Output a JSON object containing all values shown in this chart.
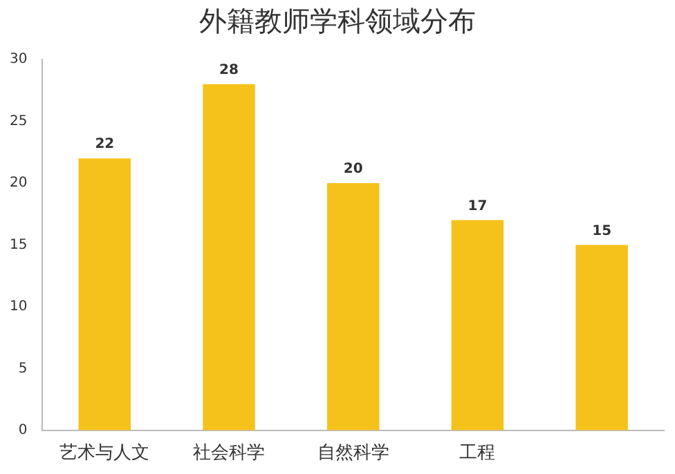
{
  "chart_data": {
    "type": "bar",
    "title": "外籍教师学科领域分布",
    "categories": [
      "艺术与人文",
      "社会科学",
      "自然科学",
      "工程",
      null
    ],
    "values": [
      22,
      28,
      20,
      17,
      15
    ],
    "color": "#f5c21b",
    "ylim": [
      0,
      30
    ],
    "yticks": [
      0,
      5,
      10,
      15,
      20,
      25,
      30
    ],
    "grid": false,
    "data_labels": true
  }
}
